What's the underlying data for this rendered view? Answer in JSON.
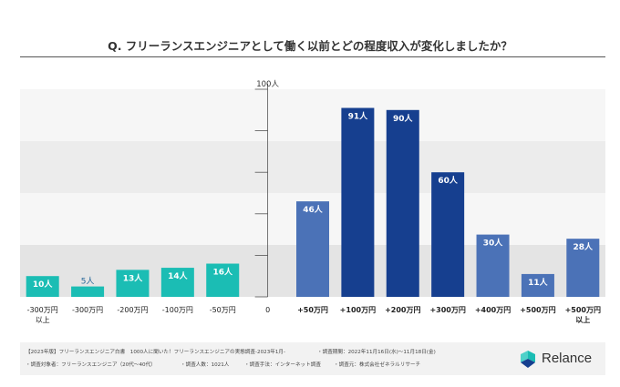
{
  "title": "Q. フリーランスエンジニアとして働く以前とどの程度収入が変化しましたか？",
  "chart_data": {
    "type": "bar",
    "ylim": [
      0,
      100
    ],
    "y_max_label": "100人",
    "categories": [
      "-300万円以上",
      "-300万円",
      "-200万円",
      "-100万円",
      "-50万円",
      "0",
      "+50万円",
      "+100万円",
      "+200万円",
      "+300万円",
      "+400万円",
      "+500万円",
      "+500万円以上"
    ],
    "category_lines": [
      [
        "-300万円",
        "以上"
      ],
      [
        "-300万円"
      ],
      [
        "-200万円"
      ],
      [
        "-100万円"
      ],
      [
        "-50万円"
      ],
      [
        "0"
      ],
      [
        "+50万円"
      ],
      [
        "+100万円"
      ],
      [
        "+200万円"
      ],
      [
        "+300万円"
      ],
      [
        "+400万円"
      ],
      [
        "+500万円"
      ],
      [
        "+500万円",
        "以上"
      ]
    ],
    "values": [
      10,
      5,
      13,
      14,
      16,
      null,
      46,
      91,
      90,
      60,
      30,
      11,
      28
    ],
    "value_labels": [
      "10人",
      "5人",
      "13人",
      "14人",
      "16人",
      "",
      "46人",
      "91人",
      "90人",
      "60人",
      "30人",
      "11人",
      "28人"
    ],
    "bar_colors": [
      "#1bbdb4",
      "#1bbdb4",
      "#1bbdb4",
      "#1bbdb4",
      "#1bbdb4",
      "",
      "#4b72b7",
      "#163f8f",
      "#163f8f",
      "#163f8f",
      "#4b72b7",
      "#4b72b7",
      "#4b72b7"
    ],
    "grid": true
  },
  "footer": {
    "line1_left": "【2023年版】フリーランスエンジニア白書　1000人に聞いた！フリーランスエンジニアの実態調査-2023年1月-",
    "line1_right": "・調査期間：2022年11月16日(水)〜11月18日(金)",
    "line2_a": "・調査対象者：フリーランスエンジニア（20代〜40代）",
    "line2_b": "・調査人数：1021人",
    "line2_c": "・調査手法：インターネット調査",
    "line2_d": "・調査元：株式会社ゼネラルリサーチ"
  },
  "logo": {
    "text": "Relance",
    "colors": [
      "#1bbdb4",
      "#163f8f"
    ]
  }
}
